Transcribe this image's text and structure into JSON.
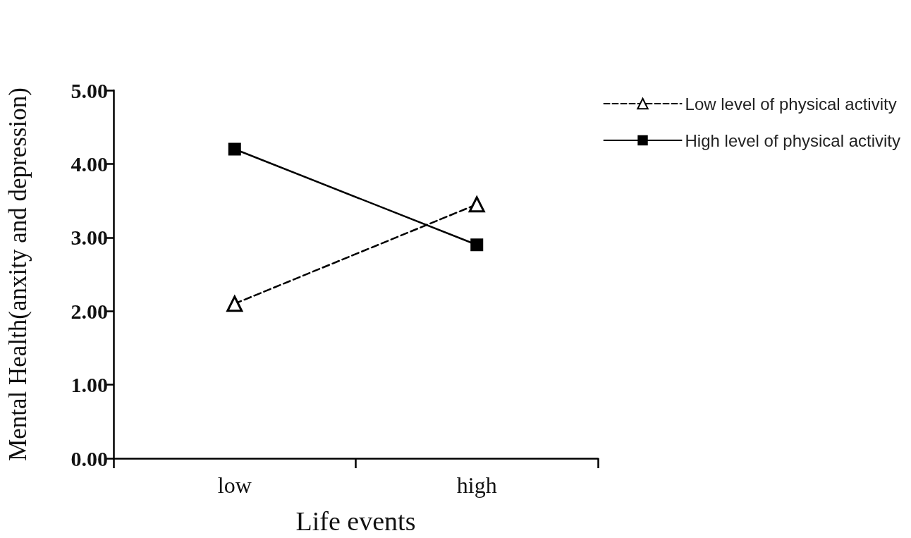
{
  "chart_data": {
    "type": "line",
    "xlabel": "Life events",
    "ylabel": "Mental Health(anxity and depression)",
    "categories": [
      "low",
      "high"
    ],
    "series": [
      {
        "name": "Low level of physical activity",
        "color": "#000000",
        "values": [
          2.1,
          3.45
        ],
        "marker": "triangle",
        "line_style": "dashed"
      },
      {
        "name": "High level of physical activity",
        "color": "#000000",
        "values": [
          4.2,
          2.9
        ],
        "marker": "square",
        "line_style": "solid"
      }
    ],
    "ylim": [
      0,
      5
    ],
    "yticks": [
      {
        "value": 0,
        "label": "0.00"
      },
      {
        "value": 1,
        "label": "1.00"
      },
      {
        "value": 2,
        "label": "2.00"
      },
      {
        "value": 3,
        "label": "3.00"
      },
      {
        "value": 4,
        "label": "4.00"
      },
      {
        "value": 5,
        "label": "5.00"
      }
    ],
    "grid": false,
    "legend": "right"
  }
}
